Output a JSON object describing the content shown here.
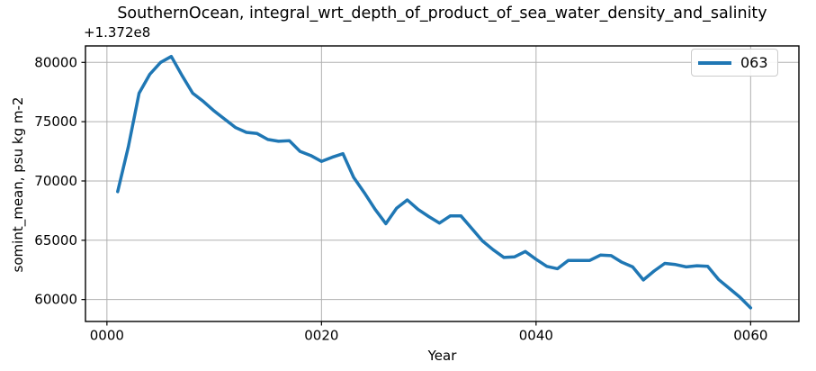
{
  "figure": {
    "title": "SouthernOcean, integral_wrt_depth_of_product_of_sea_water_density_and_salinity",
    "y_axis_offset": "+1.372e8",
    "xlabel": "Year",
    "ylabel": "somint_mean, psu kg m-2",
    "legend": {
      "position": "upper right",
      "entries": [
        {
          "label": "063",
          "color": "#1f77b4"
        }
      ]
    }
  },
  "chart_data": {
    "type": "line",
    "title": "SouthernOcean, integral_wrt_depth_of_product_of_sea_water_density_and_salinity",
    "xlabel": "Year",
    "ylabel": "somint_mean, psu kg m-2",
    "y_offset_text": "+1.372e8",
    "y_offset_base": 137200000,
    "grid": true,
    "legend_position": "upper right",
    "xlim": [
      -2,
      64.5
    ],
    "ylim": [
      58150,
      81390
    ],
    "xticks": {
      "values": [
        0,
        20,
        40,
        60
      ],
      "labels": [
        "0000",
        "0020",
        "0040",
        "0060"
      ]
    },
    "yticks": {
      "values": [
        60000,
        65000,
        70000,
        75000,
        80000
      ],
      "labels": [
        "60000",
        "65000",
        "70000",
        "75000",
        "80000"
      ]
    },
    "colors": {
      "line": "#1f77b4",
      "grid": "#b0b0b0",
      "frame": "#000000"
    },
    "series": [
      {
        "name": "063",
        "color": "#1f77b4",
        "x": [
          1,
          2,
          3,
          4,
          5,
          6,
          7,
          8,
          9,
          10,
          11,
          12,
          13,
          14,
          15,
          16,
          17,
          18,
          19,
          20,
          21,
          22,
          23,
          24,
          25,
          26,
          27,
          28,
          29,
          30,
          31,
          32,
          33,
          34,
          35,
          36,
          37,
          38,
          39,
          40,
          41,
          42,
          43,
          44,
          45,
          46,
          47,
          48,
          49,
          50,
          51,
          52,
          53,
          54,
          55,
          56,
          57,
          58,
          59,
          60
        ],
        "y": [
          69100,
          72900,
          77400,
          79000,
          80000,
          80500,
          78900,
          77400,
          76700,
          75900,
          75200,
          74500,
          74100,
          74000,
          73500,
          73350,
          73400,
          72500,
          72150,
          71650,
          72000,
          72300,
          70300,
          69000,
          67600,
          66400,
          67700,
          68400,
          67600,
          67000,
          66450,
          67050,
          67050,
          66000,
          64950,
          64200,
          63550,
          63600,
          64050,
          63400,
          62800,
          62600,
          63300,
          63300,
          63300,
          63750,
          63700,
          63150,
          62750,
          61650,
          62400,
          63050,
          62950,
          62750,
          62850,
          62800,
          61700,
          60950,
          60200,
          59300
        ]
      }
    ]
  }
}
